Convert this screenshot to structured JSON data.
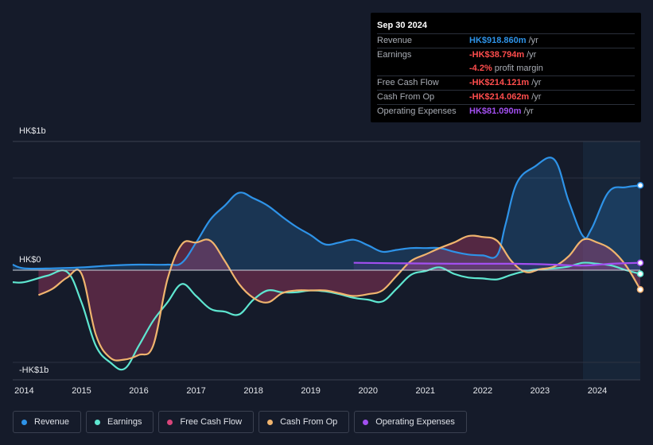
{
  "tooltip": {
    "date": "Sep 30 2024",
    "rows": [
      {
        "label": "Revenue",
        "value": "HK$918.860m",
        "unit": "/yr",
        "color": "#2e93e8"
      },
      {
        "label": "Earnings",
        "value": "-HK$38.794m",
        "unit": "/yr",
        "color": "#ff4d4d"
      },
      {
        "label": "",
        "value": "-4.2%",
        "unit": "profit margin",
        "color": "#ff4d4d"
      },
      {
        "label": "Free Cash Flow",
        "value": "-HK$214.121m",
        "unit": "/yr",
        "color": "#ff4d4d"
      },
      {
        "label": "Cash From Op",
        "value": "-HK$214.062m",
        "unit": "/yr",
        "color": "#ff4d4d"
      },
      {
        "label": "Operating Expenses",
        "value": "HK$81.090m",
        "unit": "/yr",
        "color": "#a24ff0"
      }
    ]
  },
  "axis": {
    "top": "HK$1b",
    "zero": "HK$0",
    "bottom": "-HK$1b"
  },
  "legend": [
    {
      "label": "Revenue",
      "color": "#2e93e8"
    },
    {
      "label": "Earnings",
      "color": "#5ee6d0"
    },
    {
      "label": "Free Cash Flow",
      "color": "#d9457a"
    },
    {
      "label": "Cash From Op",
      "color": "#f0b46e"
    },
    {
      "label": "Operating Expenses",
      "color": "#a24ff0"
    }
  ],
  "chart_data": {
    "type": "line",
    "ylim": [
      -1.1,
      1.4
    ],
    "xlim": [
      2013.8,
      2024.75
    ],
    "x_ticks": [
      "2014",
      "2015",
      "2016",
      "2017",
      "2018",
      "2019",
      "2020",
      "2021",
      "2022",
      "2023",
      "2024"
    ],
    "y_ticks": [
      "-HK$1b",
      "HK$0",
      "HK$1b"
    ],
    "unit": "HK$ billions",
    "forecast_shade_from": 2023.75,
    "series": [
      {
        "name": "Revenue",
        "color": "#2e93e8",
        "fill": true,
        "points": [
          [
            2013.8,
            0.06
          ],
          [
            2014.0,
            0.02
          ],
          [
            2014.5,
            0.02
          ],
          [
            2015.0,
            0.03
          ],
          [
            2015.5,
            0.05
          ],
          [
            2016.0,
            0.06
          ],
          [
            2016.5,
            0.06
          ],
          [
            2016.75,
            0.08
          ],
          [
            2017.0,
            0.3
          ],
          [
            2017.25,
            0.55
          ],
          [
            2017.5,
            0.7
          ],
          [
            2017.75,
            0.84
          ],
          [
            2018.0,
            0.78
          ],
          [
            2018.25,
            0.7
          ],
          [
            2018.5,
            0.58
          ],
          [
            2018.75,
            0.47
          ],
          [
            2019.0,
            0.38
          ],
          [
            2019.25,
            0.28
          ],
          [
            2019.5,
            0.3
          ],
          [
            2019.75,
            0.33
          ],
          [
            2020.0,
            0.27
          ],
          [
            2020.25,
            0.2
          ],
          [
            2020.5,
            0.22
          ],
          [
            2020.75,
            0.24
          ],
          [
            2021.0,
            0.24
          ],
          [
            2021.25,
            0.24
          ],
          [
            2021.5,
            0.2
          ],
          [
            2021.75,
            0.17
          ],
          [
            2022.0,
            0.16
          ],
          [
            2022.25,
            0.16
          ],
          [
            2022.4,
            0.5
          ],
          [
            2022.6,
            0.95
          ],
          [
            2022.9,
            1.12
          ],
          [
            2023.25,
            1.2
          ],
          [
            2023.5,
            0.75
          ],
          [
            2023.75,
            0.37
          ],
          [
            2023.9,
            0.45
          ],
          [
            2024.2,
            0.85
          ],
          [
            2024.5,
            0.9
          ],
          [
            2024.75,
            0.92
          ]
        ]
      },
      {
        "name": "Earnings",
        "color": "#5ee6d0",
        "fill": false,
        "points": [
          [
            2013.8,
            -0.13
          ],
          [
            2014.0,
            -0.13
          ],
          [
            2014.4,
            -0.06
          ],
          [
            2014.75,
            -0.02
          ],
          [
            2015.0,
            -0.35
          ],
          [
            2015.25,
            -0.82
          ],
          [
            2015.5,
            -1.0
          ],
          [
            2015.75,
            -1.07
          ],
          [
            2016.0,
            -0.82
          ],
          [
            2016.25,
            -0.55
          ],
          [
            2016.5,
            -0.35
          ],
          [
            2016.75,
            -0.15
          ],
          [
            2017.0,
            -0.28
          ],
          [
            2017.25,
            -0.42
          ],
          [
            2017.5,
            -0.45
          ],
          [
            2017.75,
            -0.48
          ],
          [
            2018.0,
            -0.32
          ],
          [
            2018.25,
            -0.22
          ],
          [
            2018.5,
            -0.24
          ],
          [
            2018.75,
            -0.24
          ],
          [
            2019.0,
            -0.22
          ],
          [
            2019.25,
            -0.23
          ],
          [
            2019.5,
            -0.26
          ],
          [
            2019.75,
            -0.3
          ],
          [
            2020.0,
            -0.32
          ],
          [
            2020.25,
            -0.34
          ],
          [
            2020.5,
            -0.2
          ],
          [
            2020.75,
            -0.05
          ],
          [
            2021.0,
            -0.01
          ],
          [
            2021.25,
            0.03
          ],
          [
            2021.5,
            -0.04
          ],
          [
            2021.75,
            -0.08
          ],
          [
            2022.0,
            -0.09
          ],
          [
            2022.25,
            -0.1
          ],
          [
            2022.5,
            -0.05
          ],
          [
            2022.75,
            -0.01
          ],
          [
            2023.0,
            0.01
          ],
          [
            2023.25,
            0.02
          ],
          [
            2023.5,
            0.04
          ],
          [
            2023.75,
            0.08
          ],
          [
            2024.0,
            0.07
          ],
          [
            2024.25,
            0.05
          ],
          [
            2024.5,
            0.0
          ],
          [
            2024.75,
            -0.04
          ]
        ]
      },
      {
        "name": "Free Cash Flow",
        "color": "#d9457a",
        "fill": true,
        "points": [
          [
            2014.25,
            -0.27
          ],
          [
            2014.5,
            -0.2
          ],
          [
            2014.75,
            -0.08
          ],
          [
            2015.0,
            -0.04
          ],
          [
            2015.25,
            -0.7
          ],
          [
            2015.5,
            -0.95
          ],
          [
            2015.75,
            -0.97
          ],
          [
            2016.0,
            -0.92
          ],
          [
            2016.25,
            -0.82
          ],
          [
            2016.5,
            -0.1
          ],
          [
            2016.75,
            0.28
          ],
          [
            2017.0,
            0.3
          ],
          [
            2017.25,
            0.32
          ],
          [
            2017.5,
            0.1
          ],
          [
            2017.75,
            -0.15
          ],
          [
            2018.0,
            -0.3
          ],
          [
            2018.25,
            -0.35
          ],
          [
            2018.5,
            -0.25
          ],
          [
            2018.75,
            -0.22
          ],
          [
            2019.0,
            -0.22
          ],
          [
            2019.25,
            -0.22
          ],
          [
            2019.5,
            -0.25
          ],
          [
            2019.75,
            -0.28
          ],
          [
            2020.0,
            -0.26
          ],
          [
            2020.25,
            -0.22
          ],
          [
            2020.5,
            -0.06
          ],
          [
            2020.75,
            0.1
          ],
          [
            2021.0,
            0.17
          ],
          [
            2021.25,
            0.24
          ],
          [
            2021.5,
            0.3
          ],
          [
            2021.75,
            0.37
          ],
          [
            2022.0,
            0.36
          ],
          [
            2022.25,
            0.32
          ],
          [
            2022.5,
            0.1
          ],
          [
            2022.75,
            -0.02
          ],
          [
            2023.0,
            0.01
          ],
          [
            2023.25,
            0.04
          ],
          [
            2023.5,
            0.15
          ],
          [
            2023.75,
            0.33
          ],
          [
            2024.0,
            0.3
          ],
          [
            2024.25,
            0.22
          ],
          [
            2024.5,
            0.05
          ],
          [
            2024.75,
            -0.21
          ]
        ]
      },
      {
        "name": "Cash From Op",
        "color": "#f0b46e",
        "fill": false,
        "points": [
          [
            2014.25,
            -0.27
          ],
          [
            2014.5,
            -0.2
          ],
          [
            2014.75,
            -0.08
          ],
          [
            2015.0,
            -0.04
          ],
          [
            2015.25,
            -0.7
          ],
          [
            2015.5,
            -0.95
          ],
          [
            2015.75,
            -0.97
          ],
          [
            2016.0,
            -0.92
          ],
          [
            2016.25,
            -0.82
          ],
          [
            2016.5,
            -0.1
          ],
          [
            2016.75,
            0.28
          ],
          [
            2017.0,
            0.3
          ],
          [
            2017.25,
            0.32
          ],
          [
            2017.5,
            0.1
          ],
          [
            2017.75,
            -0.15
          ],
          [
            2018.0,
            -0.3
          ],
          [
            2018.25,
            -0.35
          ],
          [
            2018.5,
            -0.25
          ],
          [
            2018.75,
            -0.22
          ],
          [
            2019.0,
            -0.22
          ],
          [
            2019.25,
            -0.22
          ],
          [
            2019.5,
            -0.25
          ],
          [
            2019.75,
            -0.28
          ],
          [
            2020.0,
            -0.26
          ],
          [
            2020.25,
            -0.22
          ],
          [
            2020.5,
            -0.06
          ],
          [
            2020.75,
            0.1
          ],
          [
            2021.0,
            0.17
          ],
          [
            2021.25,
            0.24
          ],
          [
            2021.5,
            0.3
          ],
          [
            2021.75,
            0.37
          ],
          [
            2022.0,
            0.36
          ],
          [
            2022.25,
            0.32
          ],
          [
            2022.5,
            0.1
          ],
          [
            2022.75,
            -0.02
          ],
          [
            2023.0,
            0.01
          ],
          [
            2023.25,
            0.04
          ],
          [
            2023.5,
            0.15
          ],
          [
            2023.75,
            0.33
          ],
          [
            2024.0,
            0.3
          ],
          [
            2024.25,
            0.22
          ],
          [
            2024.5,
            0.05
          ],
          [
            2024.75,
            -0.21
          ]
        ]
      },
      {
        "name": "Operating Expenses",
        "color": "#a24ff0",
        "fill": true,
        "points": [
          [
            2019.75,
            0.08
          ],
          [
            2020.5,
            0.075
          ],
          [
            2021.5,
            0.07
          ],
          [
            2022.5,
            0.07
          ],
          [
            2023.25,
            0.06
          ],
          [
            2023.75,
            0.05
          ],
          [
            2024.25,
            0.07
          ],
          [
            2024.75,
            0.08
          ]
        ]
      }
    ]
  }
}
